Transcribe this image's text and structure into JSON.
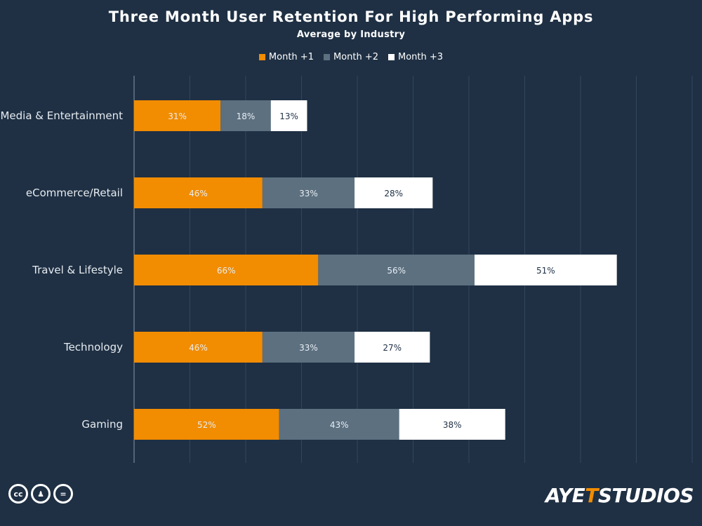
{
  "chart_data": {
    "type": "bar",
    "orientation": "horizontal",
    "stacked": true,
    "title": "Three Month User Retention For High Performing Apps",
    "subtitle": "Average by Industry",
    "categories": [
      "Media & Entertainment",
      "eCommerce/Retail",
      "Travel & Lifestyle",
      "Technology",
      "Gaming"
    ],
    "series": [
      {
        "name": "Month +1",
        "color": "#f28c00",
        "values": [
          31,
          46,
          66,
          46,
          52
        ]
      },
      {
        "name": "Month +2",
        "color": "#5c7080",
        "values": [
          18,
          33,
          56,
          33,
          43
        ]
      },
      {
        "name": "Month +3",
        "color": "#ffffff",
        "values": [
          13,
          28,
          51,
          27,
          38
        ]
      }
    ],
    "value_suffix": "%",
    "xlim": [
      0,
      200
    ],
    "grid": true,
    "legend_position": "top-center"
  },
  "footer": {
    "license_badges": [
      "cc-icon",
      "by-icon",
      "nd-icon"
    ],
    "brand": "AYETSTUDIOS"
  }
}
